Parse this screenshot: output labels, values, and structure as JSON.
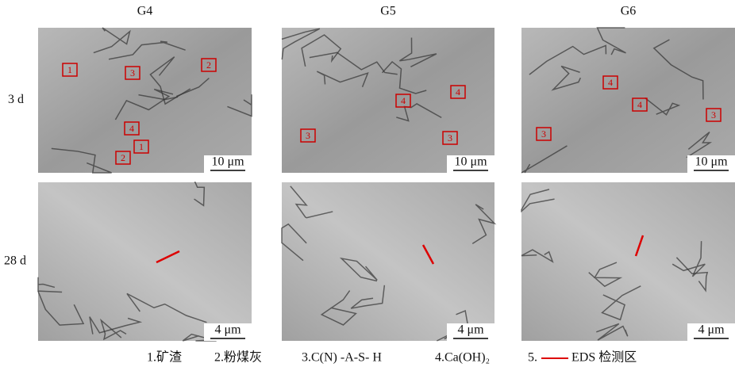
{
  "columns": [
    "G4",
    "G5",
    "G6"
  ],
  "rows": [
    "3 d",
    "28 d"
  ],
  "panels": [
    {
      "scale": "10 μm",
      "markers": [
        "1",
        "3",
        "2",
        "4",
        "1",
        "2"
      ]
    },
    {
      "scale": "10 μm",
      "markers": [
        "4",
        "4",
        "3",
        "3"
      ]
    },
    {
      "scale": "10 μm",
      "markers": [
        "4",
        "4",
        "3",
        "3"
      ]
    },
    {
      "scale": "4 μm",
      "markers": []
    },
    {
      "scale": "4 μm",
      "markers": []
    },
    {
      "scale": "4 μm",
      "markers": []
    }
  ],
  "legend": [
    "1.矿渣",
    "2.粉煤灰",
    "3.C(N) -A-S- H",
    "4.Ca(OH)₂",
    "5.",
    "EDS 检测区"
  ]
}
